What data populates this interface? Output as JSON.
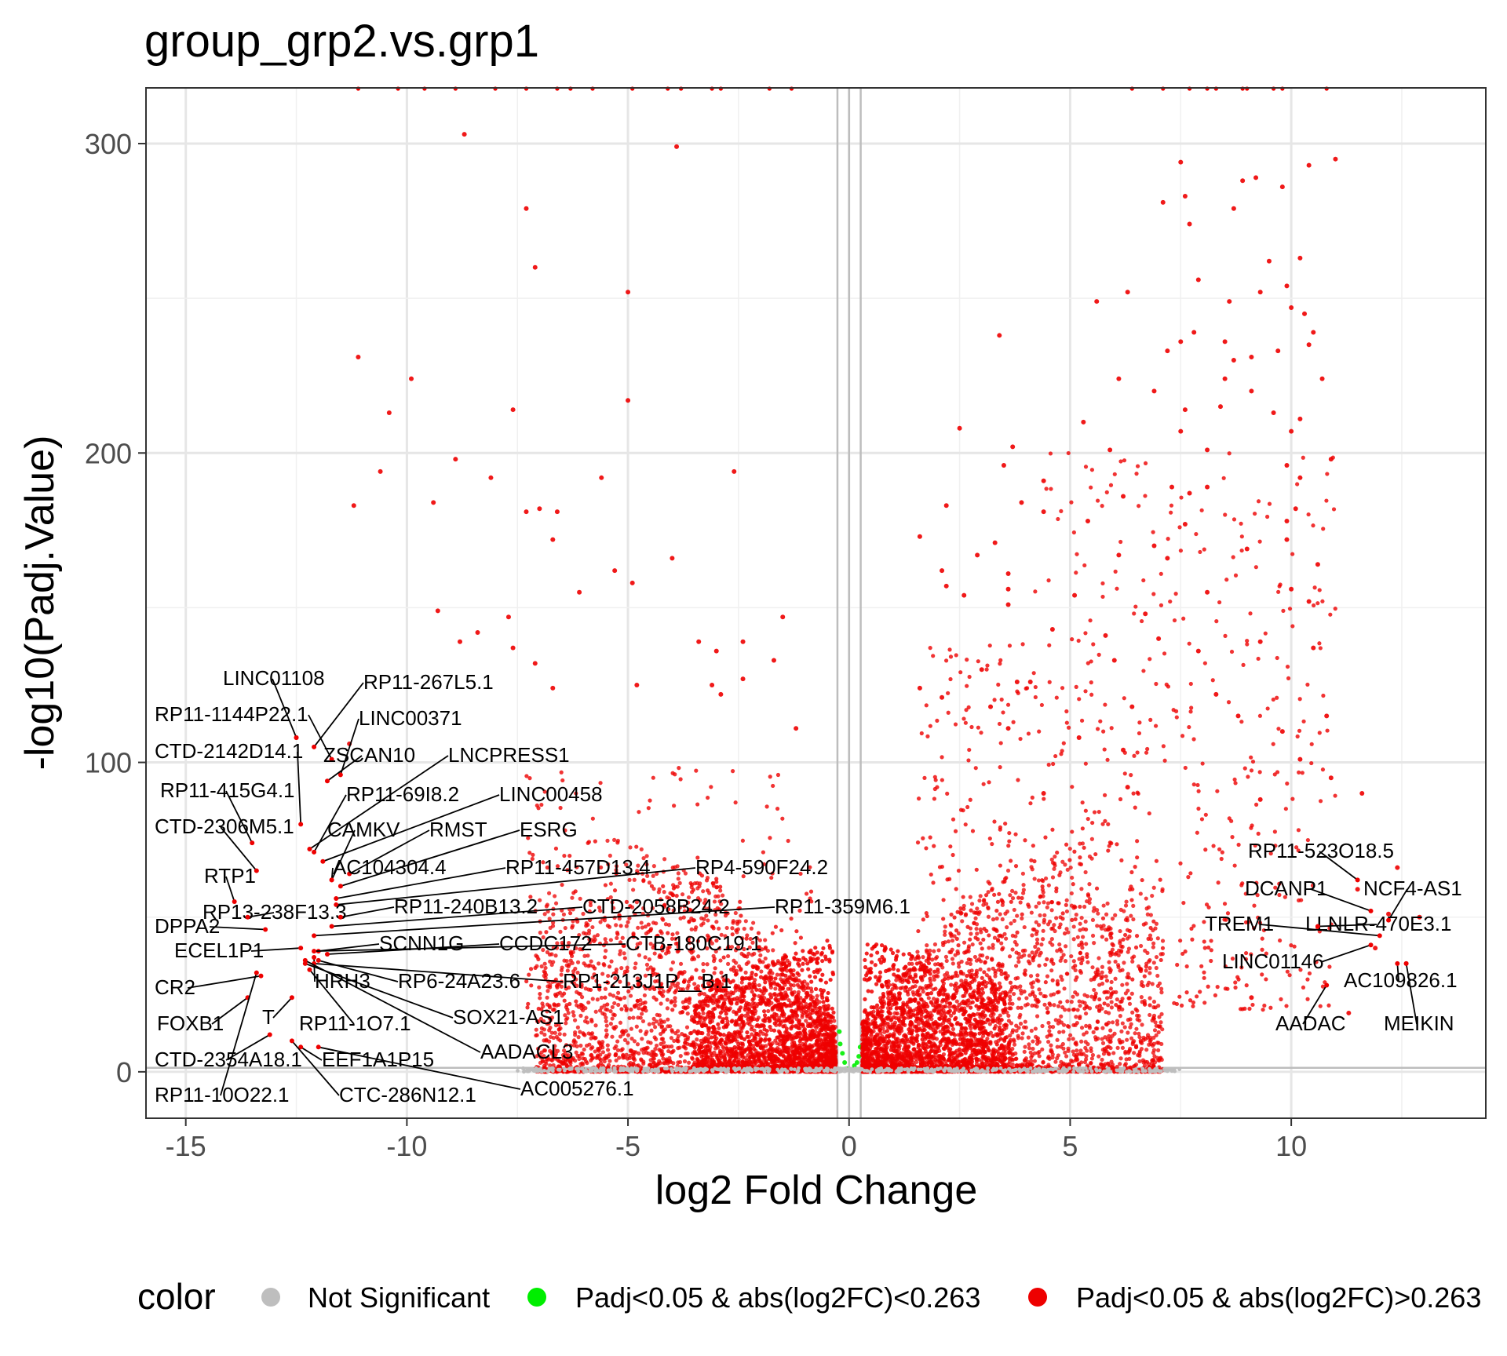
{
  "chart_data": {
    "type": "scatter",
    "title": "group_grp2.vs.grp1",
    "xlabel": "log2 Fold Change",
    "ylabel": "-log10(Padj.Value)",
    "xlim": [
      -15.9,
      14.4
    ],
    "ylim": [
      -15,
      318
    ],
    "x_ticks": [
      -15,
      -10,
      -5,
      0,
      5,
      10
    ],
    "x_tick_labels": [
      "-15",
      "-10",
      "-5",
      "0",
      "5",
      "10"
    ],
    "y_ticks": [
      0,
      100,
      200,
      300
    ],
    "y_tick_labels": [
      "0",
      "100",
      "200",
      "300"
    ],
    "grid": true,
    "vlines": [
      -0.263,
      0,
      0.263
    ],
    "hline": 1.3,
    "legend": {
      "title": "color",
      "position": "bottom",
      "entries": [
        {
          "name": "Not Significant",
          "color": "#bebebe"
        },
        {
          "name": "Padj<0.05 & abs(log2FC)<0.263",
          "color": "#00ee00"
        },
        {
          "name": "Padj<0.05 & abs(log2FC)>0.263",
          "color": "#ee0000"
        }
      ]
    },
    "colors": {
      "not_significant": "#bebebe",
      "small_fc": "#00ee00",
      "significant": "#ee0000"
    },
    "series": [
      {
        "name": "Padj<0.05 & abs(log2FC)>0.263",
        "points": [
          [
            -8.7,
            303
          ],
          [
            -3.9,
            299
          ],
          [
            -7.3,
            279
          ],
          [
            -7.1,
            260
          ],
          [
            -5,
            252
          ],
          [
            -11.1,
            231
          ],
          [
            -9.9,
            224
          ],
          [
            -10.4,
            213
          ],
          [
            -7.6,
            214
          ],
          [
            -5,
            217
          ],
          [
            -8.9,
            198
          ],
          [
            -10.6,
            194
          ],
          [
            -8.1,
            192
          ],
          [
            -5.6,
            192
          ],
          [
            -2.6,
            194
          ],
          [
            -11.2,
            183
          ],
          [
            -9.4,
            184
          ],
          [
            -7,
            182
          ],
          [
            -6.6,
            181
          ],
          [
            -7.3,
            181
          ],
          [
            -6.7,
            172
          ],
          [
            -4,
            166
          ],
          [
            -5.3,
            162
          ],
          [
            -4.9,
            158
          ],
          [
            -6.1,
            155
          ],
          [
            -9.3,
            149
          ],
          [
            -7.7,
            147
          ],
          [
            -8.4,
            142
          ],
          [
            -8.8,
            139
          ],
          [
            -7.6,
            137
          ],
          [
            -1.5,
            147
          ],
          [
            -3.4,
            139
          ],
          [
            -2.4,
            139
          ],
          [
            -7.1,
            132
          ],
          [
            -3,
            136
          ],
          [
            -1.7,
            133
          ],
          [
            -2.4,
            127
          ],
          [
            -4.8,
            125
          ],
          [
            -2.9,
            122
          ],
          [
            -3.1,
            125
          ],
          [
            -1.2,
            111
          ],
          [
            -6.7,
            124
          ],
          [
            -12.5,
            108
          ],
          [
            -11.3,
            106
          ],
          [
            11,
            295
          ],
          [
            10.4,
            293
          ],
          [
            7.5,
            294
          ],
          [
            9.2,
            289
          ],
          [
            8.9,
            288
          ],
          [
            9.8,
            286
          ],
          [
            7.6,
            283
          ],
          [
            7.1,
            281
          ],
          [
            8.7,
            279
          ],
          [
            7.7,
            274
          ],
          [
            9.5,
            262
          ],
          [
            10.2,
            263
          ],
          [
            7.9,
            256
          ],
          [
            9.3,
            252
          ],
          [
            9.9,
            254
          ],
          [
            6.3,
            252
          ],
          [
            5.6,
            249
          ],
          [
            8.6,
            249
          ],
          [
            10,
            247
          ],
          [
            10.3,
            245
          ],
          [
            10.5,
            239
          ],
          [
            3.4,
            238
          ],
          [
            7.8,
            239
          ],
          [
            8.5,
            236
          ],
          [
            10.4,
            235
          ],
          [
            7.5,
            236
          ],
          [
            9.7,
            233
          ],
          [
            7.2,
            233
          ],
          [
            9.1,
            231
          ],
          [
            8.7,
            230
          ],
          [
            10.7,
            224
          ],
          [
            6.1,
            224
          ],
          [
            6.9,
            220
          ],
          [
            8.5,
            224
          ],
          [
            9.1,
            220
          ],
          [
            8.4,
            215
          ],
          [
            10.2,
            211
          ],
          [
            7.6,
            214
          ],
          [
            9.6,
            213
          ],
          [
            5.3,
            210
          ],
          [
            2.5,
            208
          ],
          [
            10,
            207
          ],
          [
            7.5,
            207
          ],
          [
            3.7,
            202
          ],
          [
            9.9,
            196
          ],
          [
            5.9,
            201
          ],
          [
            8.1,
            201
          ],
          [
            10.9,
            198
          ],
          [
            3.5,
            196
          ],
          [
            10.2,
            192
          ],
          [
            8.1,
            189
          ],
          [
            4.4,
            191
          ],
          [
            7.3,
            189
          ],
          [
            7.7,
            187
          ],
          [
            6.2,
            186
          ],
          [
            2.2,
            183
          ],
          [
            10.1,
            182
          ],
          [
            3.9,
            184
          ],
          [
            4.4,
            181
          ],
          [
            9.9,
            178
          ],
          [
            5.4,
            178
          ],
          [
            7.6,
            177
          ],
          [
            9.9,
            172
          ],
          [
            1.6,
            173
          ],
          [
            3.3,
            171
          ],
          [
            6.9,
            170
          ],
          [
            9,
            169
          ],
          [
            7.2,
            166
          ],
          [
            6.1,
            167
          ],
          [
            2.9,
            167
          ],
          [
            10.6,
            164
          ],
          [
            2.1,
            162
          ],
          [
            3.6,
            161
          ],
          [
            2.2,
            157
          ],
          [
            3.6,
            156
          ],
          [
            10,
            156
          ],
          [
            8.1,
            155
          ],
          [
            5.1,
            154
          ],
          [
            10.4,
            152
          ],
          [
            2.6,
            154
          ],
          [
            3.6,
            151
          ],
          [
            6.7,
            148
          ],
          [
            10.5,
            137
          ],
          [
            9.3,
            139
          ],
          [
            4.6,
            143
          ],
          [
            5.8,
            141
          ],
          [
            7,
            140
          ],
          [
            7.9,
            136
          ],
          [
            3,
            130
          ],
          [
            6,
            133
          ],
          [
            4.1,
            126
          ],
          [
            3.8,
            126
          ],
          [
            2.1,
            121
          ],
          [
            3.2,
            118
          ],
          [
            1.6,
            124
          ],
          [
            8.3,
            122
          ],
          [
            6.4,
            118
          ],
          [
            10.8,
            115
          ],
          [
            8.8,
            115
          ],
          [
            3.6,
            111
          ],
          [
            9.8,
            110
          ],
          [
            5.2,
            108
          ],
          [
            6.2,
            104
          ],
          [
            10.2,
            101
          ],
          [
            10.9,
            95
          ],
          [
            11.6,
            90
          ],
          [
            9.3,
            88
          ],
          [
            6.3,
            92
          ],
          [
            4.4,
            90
          ],
          [
            12.4,
            66
          ],
          [
            11.5,
            59
          ],
          [
            12.2,
            51
          ],
          [
            12.9,
            50
          ],
          [
            11.9,
            40
          ],
          [
            12.6,
            35
          ],
          [
            9.1,
            24
          ],
          [
            11.3,
            19
          ]
        ]
      },
      {
        "name": "Padj<0.05 & abs(log2FC)<0.263",
        "points": [
          [
            -0.2,
            9
          ],
          [
            -0.15,
            6
          ],
          [
            -0.1,
            3
          ],
          [
            -0.22,
            13
          ],
          [
            0.18,
            3
          ],
          [
            0.22,
            5
          ],
          [
            0.12,
            2
          ],
          [
            0.25,
            8
          ],
          [
            -0.05,
            1
          ]
        ]
      },
      {
        "name": "Not Significant",
        "points": [
          [
            -0.1,
            0.3
          ],
          [
            0.05,
            0.4
          ],
          [
            0.1,
            0.2
          ],
          [
            -0.05,
            0.6
          ],
          [
            0.2,
            0.5
          ],
          [
            -0.2,
            0.4
          ],
          [
            0.3,
            0.6
          ],
          [
            -0.3,
            0.5
          ]
        ]
      }
    ],
    "annotations": [
      {
        "label": "LINC01108",
        "x": -12.5,
        "y": 108
      },
      {
        "label": "RP11-267L5.1",
        "x": -12.1,
        "y": 105
      },
      {
        "label": "RP11-1144P22.1",
        "x": -11.7,
        "y": 101
      },
      {
        "label": "LINC00371",
        "x": -11.5,
        "y": 96
      },
      {
        "label": "CTD-2142D14.1",
        "x": -12.4,
        "y": 80
      },
      {
        "label": "ZSCAN10",
        "x": -11.8,
        "y": 94
      },
      {
        "label": "LNCPRESS1",
        "x": -12.2,
        "y": 72
      },
      {
        "label": "RP11-415G4.1",
        "x": -13.5,
        "y": 74
      },
      {
        "label": "RP11-69I8.2",
        "x": -12.1,
        "y": 71
      },
      {
        "label": "LINC00458",
        "x": -11.9,
        "y": 68
      },
      {
        "label": "CTD-2306M5.1",
        "x": -13.4,
        "y": 65
      },
      {
        "label": "CAMKV",
        "x": -11.7,
        "y": 62
      },
      {
        "label": "RMST",
        "x": -11.3,
        "y": 64
      },
      {
        "label": "ESRG",
        "x": -11.5,
        "y": 60
      },
      {
        "label": "AC104304.4",
        "x": -11.7,
        "y": 62
      },
      {
        "label": "RP11-457D13.4",
        "x": -11.6,
        "y": 56
      },
      {
        "label": "RP4-590F24.2",
        "x": -11.6,
        "y": 54
      },
      {
        "label": "RTP1",
        "x": -13.9,
        "y": 55
      },
      {
        "label": "RP13-238F13.3",
        "x": -13.6,
        "y": 50
      },
      {
        "label": "RP11-240B13.2",
        "x": -11.5,
        "y": 50
      },
      {
        "label": "CTD-2058B24.2",
        "x": -11.7,
        "y": 47
      },
      {
        "label": "RP11-359M6.1",
        "x": -12.1,
        "y": 44
      },
      {
        "label": "DPPA2",
        "x": -13.2,
        "y": 46
      },
      {
        "label": "ECEL1P1",
        "x": -12.4,
        "y": 40
      },
      {
        "label": "SCNN1G",
        "x": -12,
        "y": 39
      },
      {
        "label": "CCDC172",
        "x": -11.8,
        "y": 38
      },
      {
        "label": "CTB-180C19.1",
        "x": -12.1,
        "y": 39
      },
      {
        "label": "HRH3",
        "x": -12.1,
        "y": 37
      },
      {
        "label": "RP6-24A23.6",
        "x": -12,
        "y": 36
      },
      {
        "label": "RP1-213J1P__B.1",
        "x": -12.1,
        "y": 35
      },
      {
        "label": "CR2",
        "x": -13.3,
        "y": 31
      },
      {
        "label": "FOXB1",
        "x": -13.6,
        "y": 24
      },
      {
        "label": "T",
        "x": -12.6,
        "y": 24
      },
      {
        "label": "RP11-1O7.1",
        "x": -12.2,
        "y": 33
      },
      {
        "label": "SOX21-AS1",
        "x": -12.3,
        "y": 35
      },
      {
        "label": "AADACL3",
        "x": -12.3,
        "y": 36
      },
      {
        "label": "CTD-2354A18.1",
        "x": -13.1,
        "y": 12
      },
      {
        "label": "EEF1A1P15",
        "x": -12.4,
        "y": 8
      },
      {
        "label": "RP11-10O22.1",
        "x": -13.4,
        "y": 32
      },
      {
        "label": "CTC-286N12.1",
        "x": -12.6,
        "y": 10
      },
      {
        "label": "AC005276.1",
        "x": -12,
        "y": 8
      },
      {
        "label": "RP11-523O18.5",
        "x": 11.5,
        "y": 62
      },
      {
        "label": "DCANP1",
        "x": 11.8,
        "y": 52
      },
      {
        "label": "NCF4-AS1",
        "x": 12.2,
        "y": 49
      },
      {
        "label": "TREM1",
        "x": 12,
        "y": 44
      },
      {
        "label": "LLNLR-470E3.1",
        "x": 10.6,
        "y": 47
      },
      {
        "label": "LINC01146",
        "x": 11.8,
        "y": 41
      },
      {
        "label": "AC109826.1",
        "x": 12.4,
        "y": 35
      },
      {
        "label": "AADAC",
        "x": 10.8,
        "y": 28
      },
      {
        "label": "MEIKIN",
        "x": 12.6,
        "y": 35
      }
    ]
  }
}
